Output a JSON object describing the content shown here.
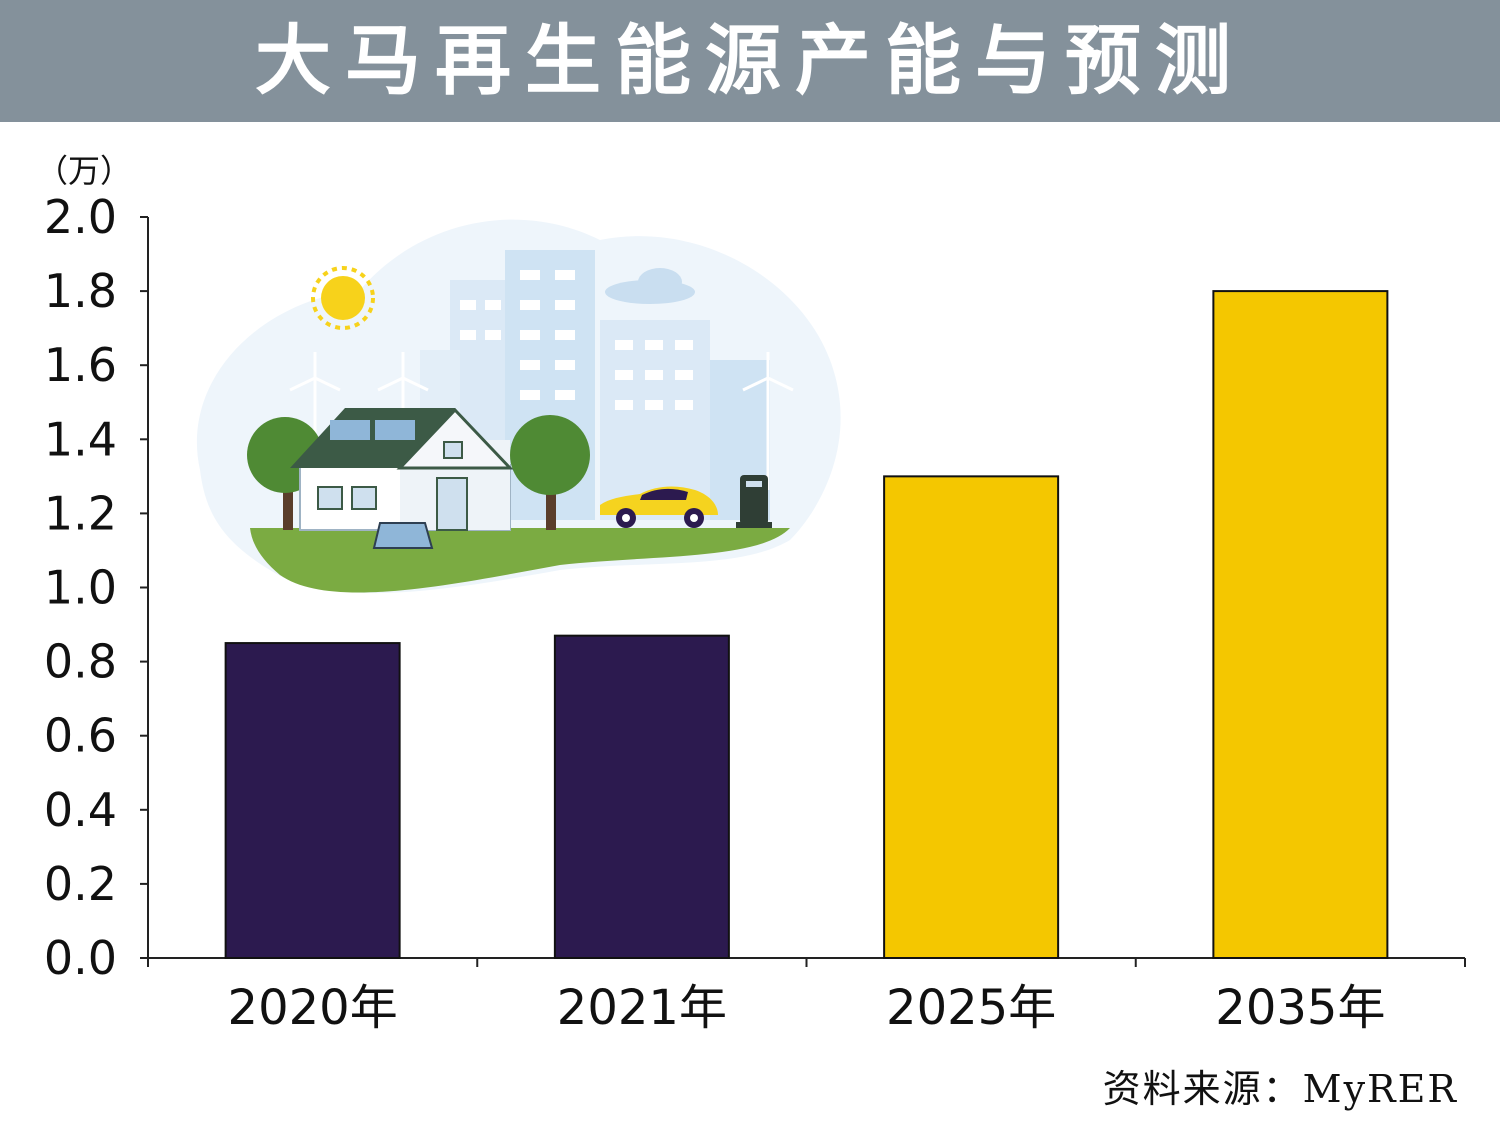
{
  "title": "大马再生能源产能与预测",
  "unit_label": "（万）",
  "source": "资料来源：MyRER",
  "colors": {
    "actual": "#2c1a4f",
    "forecast": "#f4c700",
    "title_bg": "#84919b"
  },
  "chart_data": {
    "type": "bar",
    "categories": [
      "2020年",
      "2021年",
      "2025年",
      "2035年"
    ],
    "values": [
      0.85,
      0.87,
      1.3,
      1.8
    ],
    "bar_colors": [
      "#2c1a4f",
      "#2c1a4f",
      "#f4c700",
      "#f4c700"
    ],
    "ylim": [
      0,
      2.0
    ],
    "yticks": [
      "0.0",
      "0.2",
      "0.4",
      "0.6",
      "0.8",
      "1.0",
      "1.2",
      "1.4",
      "1.6",
      "1.8",
      "2.0"
    ],
    "grid": false
  }
}
